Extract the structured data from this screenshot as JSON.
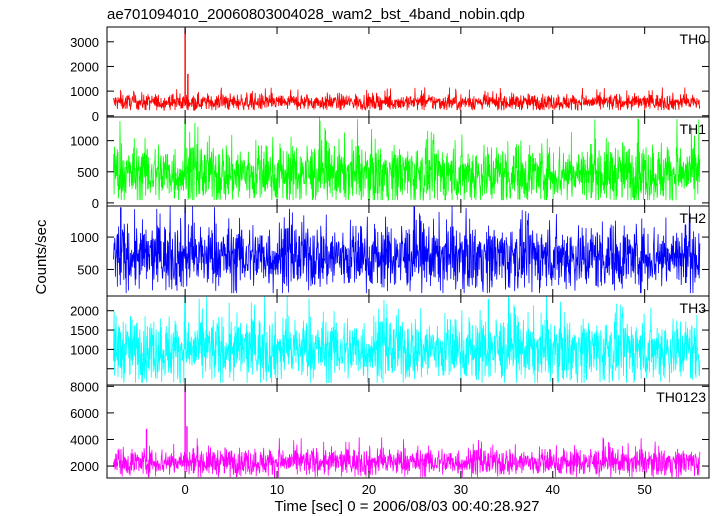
{
  "chart_data": {
    "type": "line",
    "title": "ae701094010_20060803004028_wam2_bst_4band_nobin.qdp",
    "xlabel": "Time [sec] 0 = 2006/08/03 00:40:28.927",
    "ylabel": "Counts/sec",
    "xlim": [
      -8.5,
      57.0
    ],
    "x_ticks": [
      0,
      10,
      20,
      30,
      40,
      50
    ],
    "x_tick_labels": [
      "0",
      "10",
      "20",
      "30",
      "40",
      "50"
    ],
    "x_data_range": [
      -7.8,
      56.0
    ],
    "grid": false,
    "legend": "none",
    "panels": [
      {
        "name": "TH0",
        "color": "#ff0000",
        "ylim": [
          -50,
          3600
        ],
        "y_ticks": [
          0,
          1000,
          2000,
          3000
        ],
        "y_tick_labels": [
          "0",
          "1000",
          "2000",
          "3000"
        ],
        "baseline": 550,
        "typical_range": [
          250,
          1100
        ],
        "spikes": [
          {
            "x": 0.0,
            "y": 3550
          },
          {
            "x": 0.3,
            "y": 1700
          }
        ]
      },
      {
        "name": "TH1",
        "color": "#00ff00",
        "ylim": [
          -50,
          1380
        ],
        "y_ticks": [
          0,
          500,
          1000
        ],
        "y_tick_labels": [
          "0",
          "500",
          "1000"
        ],
        "baseline": 470,
        "typical_range": [
          50,
          1300
        ],
        "spikes": [
          {
            "x": 0.0,
            "y": 1350
          },
          {
            "x": 49.3,
            "y": 1350
          }
        ]
      },
      {
        "name": "TH2",
        "color": "#0000ff",
        "ylim": [
          90,
          1480
        ],
        "y_ticks": [
          500,
          1000
        ],
        "y_tick_labels": [
          "500",
          "1000"
        ],
        "baseline": 700,
        "typical_range": [
          150,
          1450
        ],
        "spikes": [
          {
            "x": -7.0,
            "y": 1460
          },
          {
            "x": 0.0,
            "y": 1460
          }
        ]
      },
      {
        "name": "TH3",
        "color": "#00ffff",
        "ylim": [
          80,
          2380
        ],
        "y_ticks": [
          500,
          1000,
          1500,
          2000
        ],
        "y_tick_labels": [
          "",
          "1000",
          "1500",
          "2000"
        ],
        "baseline": 1000,
        "typical_range": [
          150,
          2300
        ],
        "spikes": [
          {
            "x": 0.0,
            "y": 2350
          },
          {
            "x": 33.0,
            "y": 2300
          }
        ]
      },
      {
        "name": "TH0123",
        "color": "#ff00ff",
        "ylim": [
          1100,
          8100
        ],
        "y_ticks": [
          2000,
          4000,
          6000,
          8000
        ],
        "y_tick_labels": [
          "2000",
          "4000",
          "6000",
          "8000"
        ],
        "baseline": 2300,
        "typical_range": [
          1300,
          4000
        ],
        "spikes": [
          {
            "x": 0.0,
            "y": 8000
          },
          {
            "x": 0.2,
            "y": 5000
          },
          {
            "x": -4.2,
            "y": 4800
          }
        ]
      }
    ]
  }
}
